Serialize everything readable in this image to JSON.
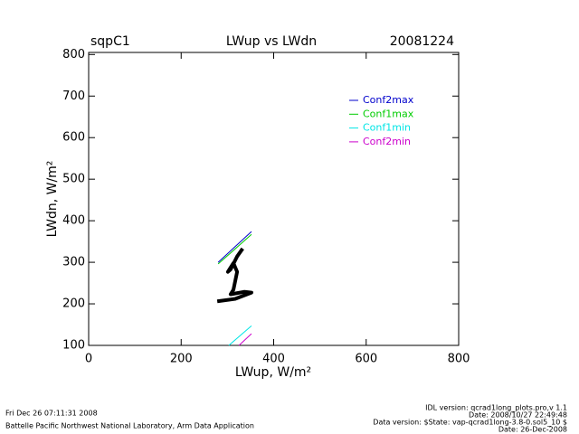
{
  "chart_data": {
    "type": "line",
    "site": "sqpC1",
    "title": "LWup vs LWdn",
    "date": "20081224",
    "xlabel": "LWup, W/m²",
    "ylabel": "LWdn, W/m²",
    "xlim": [
      0,
      800
    ],
    "xticks": [
      0,
      200,
      400,
      600,
      800
    ],
    "ylim": [
      100,
      805
    ],
    "yticks": [
      100,
      200,
      300,
      400,
      500,
      600,
      700,
      800
    ],
    "series": [
      {
        "name": "Conf2max",
        "color": "#0000cc",
        "x": [
          280,
          352
        ],
        "values": [
          300,
          374
        ]
      },
      {
        "name": "Conf1max",
        "color": "#00cc00",
        "x": [
          280,
          352
        ],
        "values": [
          296,
          367
        ]
      },
      {
        "name": "Conf1min",
        "color": "#00e5e5",
        "x": [
          303,
          352
        ],
        "values": [
          100,
          147
        ]
      },
      {
        "name": "Conf2min",
        "color": "#cc00cc",
        "x": [
          325,
          352
        ],
        "values": [
          100,
          128
        ]
      },
      {
        "color": "#000000",
        "x": [
          333,
          321,
          307,
          301,
          313,
          321,
          313,
          307,
          337,
          352,
          317,
          278
        ],
        "values": [
          333,
          314,
          283,
          277,
          298,
          277,
          234,
          223,
          229,
          227,
          212,
          206
        ]
      }
    ],
    "footer_left": [
      "Fri Dec 26 07:11:31 2008",
      "Battelle Pacific Northwest National Laboratory, Arm Data Application"
    ],
    "footer_right": [
      "IDL version: qcrad1long_plots.pro,v 1.1",
      "Date: 2008/10/27 22:49:48",
      "Data version: $State: vap-qcrad1long-3.8-0.sol5_10 $",
      "Date: 26-Dec-2008"
    ]
  }
}
